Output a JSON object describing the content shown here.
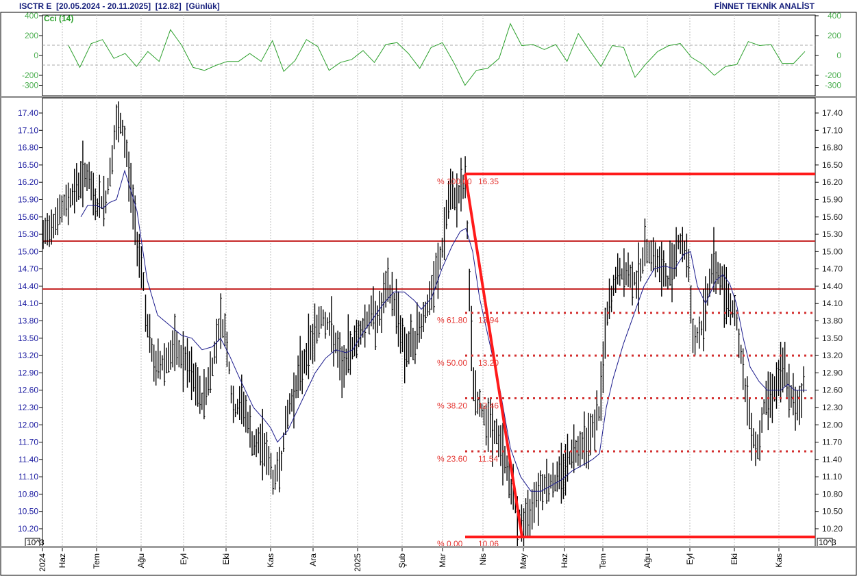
{
  "header": {
    "title": "ISCTR E  [20.05.2024 - 20.11.2025]  [12.82]  [Günlük]",
    "brand": "FİNNET TEKNİK ANALİST"
  },
  "indicator": {
    "label": "Cci (14)",
    "y_ticks": [
      "400",
      "200",
      "0",
      "-200",
      "-300"
    ],
    "y_tick_values": [
      400,
      200,
      0,
      -200,
      -300
    ],
    "color": "#2ca02c"
  },
  "price_axis": {
    "ticks": [
      "17.40",
      "17.10",
      "16.80",
      "16.50",
      "16.20",
      "15.90",
      "15.60",
      "15.30",
      "15.00",
      "14.70",
      "14.40",
      "14.10",
      "13.80",
      "13.50",
      "13.20",
      "12.90",
      "12.60",
      "12.30",
      "12.00",
      "11.70",
      "11.40",
      "11.10",
      "10.80",
      "10.50",
      "10.20"
    ],
    "scale_badge": "10^3"
  },
  "time_axis": {
    "labels": [
      "2024",
      "Haz",
      "Tem",
      "Ağu",
      "Eyl",
      "Eki",
      "Kas",
      "Ara",
      "2025",
      "Şub",
      "Mar",
      "Nis",
      "May",
      "Haz",
      "Tem",
      "Ağu",
      "Eyl",
      "Eki",
      "Kas"
    ]
  },
  "fibonacci": {
    "levels": [
      {
        "pct": "% 100.00",
        "value": "16.35"
      },
      {
        "pct": "% 61.80",
        "value": "13.94"
      },
      {
        "pct": "% 50.00",
        "value": "13.20"
      },
      {
        "pct": "% 38.20",
        "value": "12.46"
      },
      {
        "pct": "% 23.60",
        "value": "11.54"
      },
      {
        "pct": "% 0.00",
        "value": "10.06"
      }
    ]
  },
  "colors": {
    "price_bars": "#000000",
    "moving_average": "#1a1a8c",
    "fib_lines": "#ff1a1a",
    "horizontal_resistance": "#c62828",
    "axis_text": "#1a1aa0",
    "cci_line": "#2ca02c"
  },
  "chart_data": [
    {
      "type": "line",
      "title": "Cci (14)",
      "ylabel": "",
      "ylim": [
        -350,
        420
      ],
      "reference_lines": [
        100,
        -100
      ],
      "x": [
        "Haz 2024",
        "Tem",
        "Ağu",
        "Eyl",
        "Eki",
        "Kas",
        "Ara",
        "2025",
        "Şub",
        "Mar",
        "Nis",
        "May",
        "Haz",
        "Tem",
        "Ağu",
        "Eyl",
        "Eki",
        "Kas"
      ],
      "values": [
        100,
        -120,
        120,
        160,
        -30,
        20,
        -110,
        40,
        -60,
        260,
        100,
        -120,
        -150,
        -100,
        -60,
        -60,
        20,
        -60,
        150,
        -160,
        -50,
        160,
        90,
        -150,
        -70,
        -40,
        50,
        -70,
        110,
        130,
        20,
        -130,
        80,
        130,
        -70,
        -300,
        -150,
        -130,
        -30,
        320,
        100,
        110,
        60,
        110,
        -60,
        220,
        50,
        -110,
        100,
        80,
        -220,
        -80,
        40,
        100,
        120,
        -20,
        -90,
        -200,
        -110,
        -90,
        140,
        100,
        110,
        -80,
        -80,
        40
      ]
    },
    {
      "type": "ohlc",
      "title": "ISCTR E [20.05.2024 - 20.11.2025] [12.82] [Günlük]",
      "xlabel": "",
      "ylabel": "",
      "ylim": [
        10.05,
        17.55
      ],
      "categories": [
        "2024",
        "Haz",
        "Tem",
        "Ağu",
        "Eyl",
        "Eki",
        "Kas",
        "Ara",
        "2025",
        "Şub",
        "Mar",
        "Nis",
        "May",
        "Haz",
        "Tem",
        "Ağu",
        "Eyl",
        "Eki",
        "Kas"
      ],
      "series": [
        {
          "name": "Close (approx, monthly checkpoints)",
          "values": [
            15.2,
            15.7,
            15.8,
            14.8,
            13.3,
            13.4,
            11.5,
            12.5,
            13.5,
            14.1,
            14.8,
            11.8,
            10.3,
            11.1,
            12.2,
            14.8,
            14.7,
            14.0,
            12.6
          ]
        },
        {
          "name": "Moving Average",
          "values": [
            null,
            15.6,
            15.8,
            15.7,
            13.5,
            13.3,
            12.0,
            12.3,
            13.2,
            13.9,
            14.2,
            13.5,
            10.8,
            10.9,
            12.0,
            14.0,
            14.5,
            14.3,
            12.6
          ]
        }
      ],
      "horizontal_lines": [
        15.2,
        14.36
      ],
      "fibonacci_retracement": {
        "high": 16.35,
        "low": 10.06,
        "levels": {
          "100": 16.35,
          "61.8": 13.94,
          "50": 13.2,
          "38.2": 12.46,
          "23.6": 11.54,
          "0": 10.06
        }
      },
      "period_high": 17.45,
      "period_low": 10.06,
      "last": 12.82
    }
  ]
}
